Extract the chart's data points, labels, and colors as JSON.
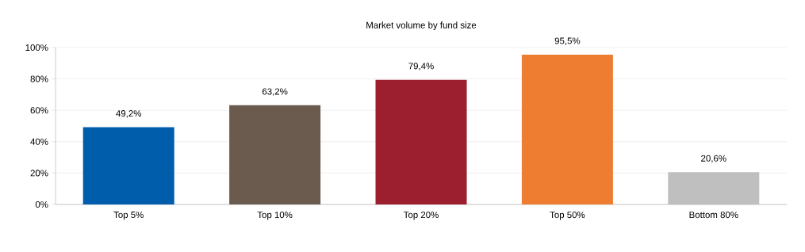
{
  "chart_data": {
    "type": "bar",
    "title": "Market volume by fund size",
    "categories": [
      "Top 5%",
      "Top 10%",
      "Top 20%",
      "Top 50%",
      "Bottom 80%"
    ],
    "values": [
      49.2,
      63.2,
      79.4,
      95.5,
      20.6
    ],
    "value_labels": [
      "49,2%",
      "63,2%",
      "79,4%",
      "95,5%",
      "20,6%"
    ],
    "colors": [
      "#005dab",
      "#6b5b4e",
      "#9b1f2e",
      "#ee7d31",
      "#bfbfbf"
    ],
    "ylim": [
      0,
      100
    ],
    "yticks": [
      {
        "value": 0,
        "label": "0%"
      },
      {
        "value": 20,
        "label": "20%"
      },
      {
        "value": 40,
        "label": "40%"
      },
      {
        "value": 60,
        "label": "60%"
      },
      {
        "value": 80,
        "label": "80%"
      },
      {
        "value": 100,
        "label": "100%"
      }
    ],
    "grid": "y"
  }
}
